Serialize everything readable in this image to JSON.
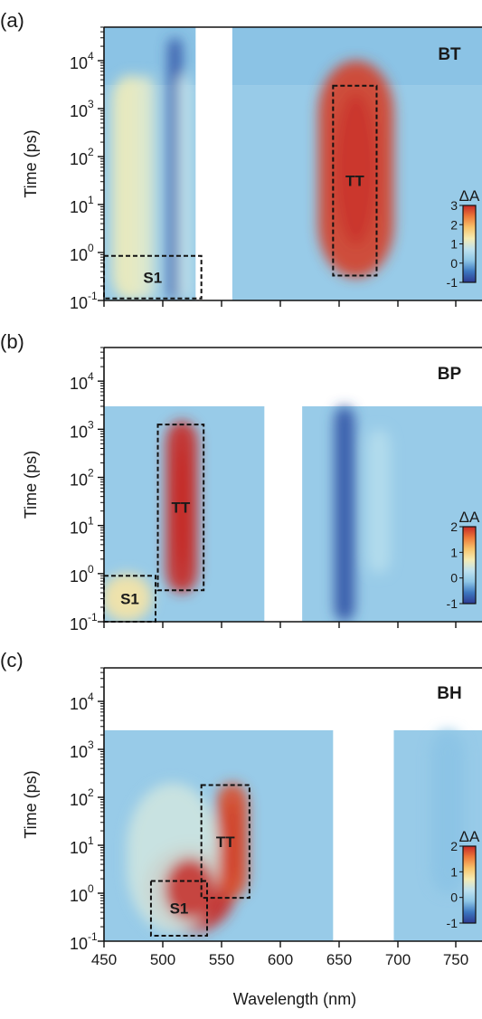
{
  "figure": {
    "xlabel": "Wavelength (nm)",
    "ylabel": "Time (ps)",
    "xticks": [
      "450",
      "500",
      "550",
      "600",
      "650",
      "700",
      "750"
    ],
    "colormap": [
      "#2c3a92",
      "#3d78c0",
      "#8ec6e6",
      "#bfe2ef",
      "#f5ecb4",
      "#f7c36b",
      "#ec7a3a",
      "#c62a27"
    ]
  },
  "chart_data": [
    {
      "type": "heatmap",
      "panel_label": "(a)",
      "sample": "BT",
      "xlabel": "",
      "ylabel": "Time (ps)",
      "xlim": [
        450,
        780
      ],
      "ylim": [
        0.1,
        50000
      ],
      "yscale": "log",
      "yticks": [
        {
          "base": "10",
          "exp": "-1"
        },
        {
          "base": "10",
          "exp": "0"
        },
        {
          "base": "10",
          "exp": "1"
        },
        {
          "base": "10",
          "exp": "2"
        },
        {
          "base": "10",
          "exp": "3"
        },
        {
          "base": "10",
          "exp": "4"
        }
      ],
      "colorbar": {
        "label": "ΔA",
        "range": [
          -1,
          3
        ],
        "ticks": [
          "3",
          "2",
          "1",
          "0",
          "-1"
        ]
      },
      "blank_regions": [
        [
          530,
          562
        ]
      ],
      "measured_max_time": 3000,
      "features": [
        {
          "type": "positive",
          "center_wavelength": 670,
          "half_width": 33,
          "time_range": [
            0.3,
            10000
          ],
          "peak": 2.8
        },
        {
          "type": "positive",
          "center_wavelength": 473,
          "half_width": 16,
          "time_range": [
            0.1,
            5000
          ],
          "peak": 1.0
        },
        {
          "type": "positive",
          "center_wavelength": 486,
          "half_width": 8,
          "time_range": [
            0.1,
            5000
          ],
          "peak": 0.8
        },
        {
          "type": "negative",
          "center_wavelength": 512,
          "half_width": 6,
          "time_range": [
            0.1,
            30000
          ],
          "peak": -0.8
        },
        {
          "type": "positive",
          "center_wavelength": 520,
          "half_width": 6,
          "time_range": [
            0.1,
            5000
          ],
          "peak": 0.5
        }
      ],
      "boxes": [
        {
          "label": "S1",
          "x": [
            450,
            535
          ],
          "y": [
            0.11,
            0.85
          ]
        },
        {
          "label": "TT",
          "x": [
            650,
            688
          ],
          "y": [
            0.33,
            3000
          ]
        }
      ]
    },
    {
      "type": "heatmap",
      "panel_label": "(b)",
      "sample": "BP",
      "xlabel": "",
      "ylabel": "Time (ps)",
      "xlim": [
        450,
        780
      ],
      "ylim": [
        0.1,
        50000
      ],
      "yscale": "log",
      "yticks": [
        {
          "base": "10",
          "exp": "-1"
        },
        {
          "base": "10",
          "exp": "0"
        },
        {
          "base": "10",
          "exp": "1"
        },
        {
          "base": "10",
          "exp": "2"
        },
        {
          "base": "10",
          "exp": "3"
        },
        {
          "base": "10",
          "exp": "4"
        }
      ],
      "colorbar": {
        "label": "ΔA",
        "range": [
          -1,
          2
        ],
        "ticks": [
          "2",
          "1",
          "0",
          "-1"
        ]
      },
      "blank_regions": [
        [
          590,
          623
        ]
      ],
      "measured_max_time": 3000,
      "features": [
        {
          "type": "positive",
          "center_wavelength": 518,
          "half_width": 14,
          "time_range": [
            0.4,
            1500
          ],
          "peak": 2.0
        },
        {
          "type": "positive",
          "center_wavelength": 470,
          "half_width": 22,
          "time_range": [
            0.1,
            1.0
          ],
          "peak": 0.8
        },
        {
          "type": "negative",
          "center_wavelength": 660,
          "half_width": 9,
          "time_range": [
            0.1,
            3000
          ],
          "peak": -0.8
        },
        {
          "type": "positive",
          "center_wavelength": 690,
          "half_width": 10,
          "time_range": [
            1,
            1000
          ],
          "peak": 0.2
        }
      ],
      "boxes": [
        {
          "label": "S1",
          "x": [
            450,
            495
          ],
          "y": [
            0.1,
            0.9
          ]
        },
        {
          "label": "TT",
          "x": [
            497,
            537
          ],
          "y": [
            0.45,
            1250
          ]
        }
      ]
    },
    {
      "type": "heatmap",
      "panel_label": "(c)",
      "sample": "BH",
      "xlabel": "Wavelength (nm)",
      "ylabel": "Time (ps)",
      "xlim": [
        450,
        780
      ],
      "ylim": [
        0.1,
        50000
      ],
      "yscale": "log",
      "yticks": [
        {
          "base": "10",
          "exp": "-1"
        },
        {
          "base": "10",
          "exp": "0"
        },
        {
          "base": "10",
          "exp": "1"
        },
        {
          "base": "10",
          "exp": "2"
        },
        {
          "base": "10",
          "exp": "3"
        },
        {
          "base": "10",
          "exp": "4"
        }
      ],
      "colorbar": {
        "label": "ΔA",
        "range": [
          -1,
          2
        ],
        "ticks": [
          "2",
          "1",
          "0",
          "-1"
        ]
      },
      "blank_regions": [
        [
          650,
          703
        ]
      ],
      "measured_max_time": 2500,
      "features": [
        {
          "type": "positive",
          "center_wavelength": 525,
          "half_width": 40,
          "time_range": [
            0.15,
            10
          ],
          "peak": 2.0
        },
        {
          "type": "positive",
          "center_wavelength": 562,
          "half_width": 14,
          "time_range": [
            0.8,
            200
          ],
          "peak": 1.8
        },
        {
          "type": "positive",
          "center_wavelength": 510,
          "half_width": 40,
          "time_range": [
            0.15,
            200
          ],
          "peak": 0.4
        },
        {
          "type": "negative",
          "center_wavelength": 750,
          "half_width": 15,
          "time_range": [
            1,
            2500
          ],
          "peak": -0.15
        }
      ],
      "boxes": [
        {
          "label": "S1",
          "x": [
            491,
            540
          ],
          "y": [
            0.13,
            1.8
          ]
        },
        {
          "label": "TT",
          "x": [
            535,
            577
          ],
          "y": [
            0.8,
            180
          ]
        }
      ]
    }
  ]
}
